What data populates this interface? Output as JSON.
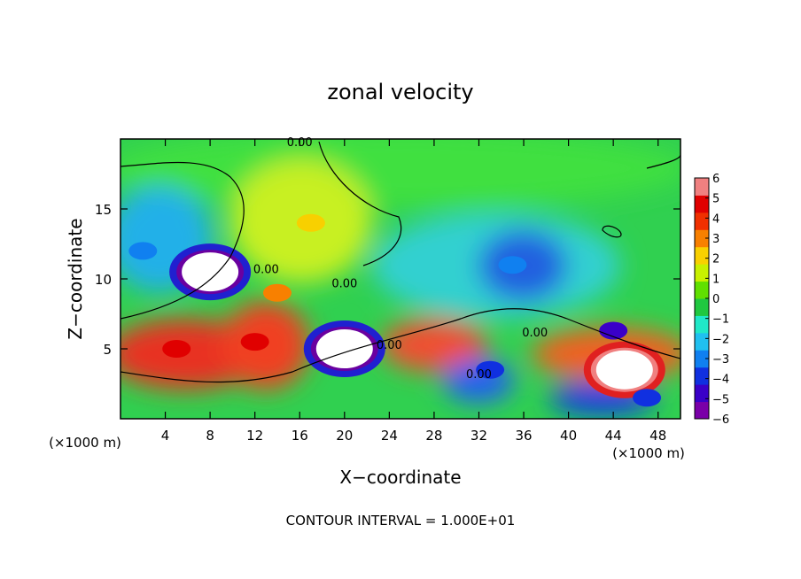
{
  "chart_data": {
    "type": "heatmap",
    "title": "zonal velocity",
    "xlabel": "X−coordinate",
    "ylabel": "Z−coordinate",
    "x_units_left": "(×1000 m)",
    "x_units_right": "(×1000 m)",
    "xlim": [
      0,
      50
    ],
    "ylim": [
      0,
      20
    ],
    "x_ticks": [
      4,
      8,
      12,
      16,
      20,
      24,
      28,
      32,
      36,
      40,
      44,
      48
    ],
    "y_ticks": [
      5,
      10,
      15
    ],
    "colorbar": {
      "ticks": [
        6,
        5,
        4,
        3,
        2,
        1,
        0,
        -1,
        -2,
        -3,
        -4,
        -5,
        -6
      ],
      "tick_labels": [
        "6",
        "5",
        "4",
        "3",
        "2",
        "1",
        "0",
        "−1",
        "−2",
        "−3",
        "−4",
        "−5",
        "−6"
      ],
      "range": [
        -6,
        6
      ],
      "colors": [
        "#7a00a8",
        "#3a00c8",
        "#1030e0",
        "#1080f0",
        "#20c0f0",
        "#20e8c8",
        "#20c840",
        "#60e000",
        "#c8f000",
        "#f8d000",
        "#f88000",
        "#f03000",
        "#e00000",
        "#f08080"
      ]
    },
    "contour_labels": [
      "0.00",
      "0.00",
      "0.00",
      "0.00",
      "0.00",
      "0.00"
    ],
    "annotation": "CONTOUR INTERVAL = 1.000E+01",
    "features": [
      {
        "x": 8,
        "z": 10.5,
        "value": -6
      },
      {
        "x": 20,
        "z": 5,
        "value": -6
      },
      {
        "x": 45,
        "z": 3.5,
        "value": 6
      },
      {
        "x": 5,
        "z": 5,
        "value": 5
      },
      {
        "x": 12,
        "z": 5.5,
        "value": 5
      },
      {
        "x": 14,
        "z": 9,
        "value": 3
      },
      {
        "x": 17,
        "z": 14,
        "value": 2
      },
      {
        "x": 35,
        "z": 11,
        "value": -3
      },
      {
        "x": 33,
        "z": 3.5,
        "value": -4
      },
      {
        "x": 44,
        "z": 6.3,
        "value": -5
      },
      {
        "x": 2,
        "z": 12,
        "value": -3
      },
      {
        "x": 47,
        "z": 1.5,
        "value": -4
      }
    ]
  }
}
